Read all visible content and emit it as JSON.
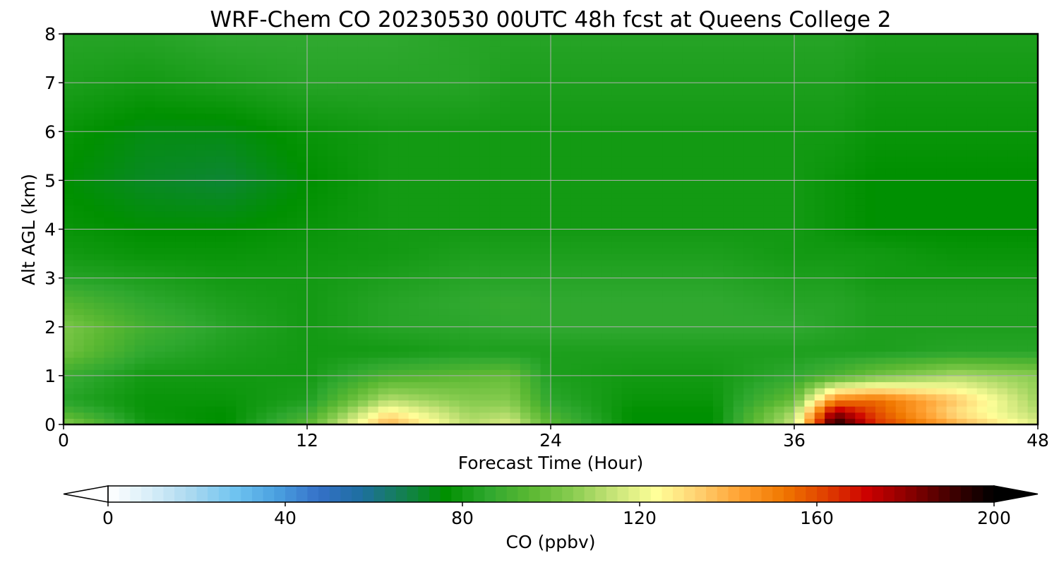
{
  "chart_data": {
    "type": "heatmap",
    "title": "WRF-Chem CO  20230530 00UTC 48h fcst at Queens College 2",
    "xlabel": "Forecast Time (Hour)",
    "ylabel": "Alt AGL (km)",
    "xlim": [
      0,
      48
    ],
    "ylim": [
      0,
      8
    ],
    "xticks": [
      0,
      12,
      24,
      36,
      48
    ],
    "xtick_labels": [
      "0",
      "12",
      "24",
      "36",
      "48"
    ],
    "yticks": [
      0,
      1,
      2,
      3,
      4,
      5,
      6,
      7,
      8
    ],
    "ytick_labels": [
      "0",
      "1",
      "2",
      "3",
      "4",
      "5",
      "6",
      "7",
      "8"
    ],
    "grid": true,
    "x": [
      0,
      4,
      8,
      12,
      16,
      20,
      22,
      24,
      28,
      32,
      36,
      38,
      40,
      44,
      48
    ],
    "y": [
      0,
      0.25,
      0.5,
      1,
      1.5,
      2,
      2.5,
      3,
      3.5,
      4,
      5,
      6,
      7,
      8
    ],
    "z": [
      [
        105,
        80,
        76,
        95,
        140,
        112,
        118,
        95,
        76,
        76,
        115,
        198,
        165,
        140,
        118
      ],
      [
        92,
        78,
        76,
        88,
        128,
        108,
        110,
        90,
        76,
        76,
        110,
        180,
        160,
        130,
        112
      ],
      [
        84,
        78,
        78,
        82,
        112,
        104,
        104,
        85,
        78,
        78,
        98,
        150,
        155,
        135,
        108
      ],
      [
        88,
        80,
        80,
        80,
        92,
        96,
        98,
        82,
        80,
        80,
        86,
        92,
        100,
        110,
        105
      ],
      [
        100,
        86,
        82,
        80,
        80,
        82,
        82,
        82,
        82,
        82,
        82,
        82,
        82,
        84,
        84
      ],
      [
        102,
        90,
        84,
        80,
        84,
        85,
        86,
        86,
        86,
        86,
        86,
        84,
        82,
        82,
        82
      ],
      [
        94,
        86,
        82,
        80,
        84,
        86,
        87,
        86,
        86,
        86,
        84,
        84,
        82,
        82,
        82
      ],
      [
        84,
        82,
        80,
        80,
        82,
        84,
        84,
        84,
        84,
        84,
        82,
        82,
        80,
        80,
        80
      ],
      [
        80,
        78,
        78,
        79,
        80,
        82,
        82,
        82,
        82,
        82,
        80,
        80,
        80,
        78,
        78
      ],
      [
        78,
        76,
        76,
        78,
        80,
        80,
        80,
        80,
        80,
        80,
        80,
        78,
        76,
        76,
        76
      ],
      [
        76,
        72,
        70,
        76,
        80,
        80,
        80,
        80,
        80,
        80,
        80,
        78,
        76,
        76,
        76
      ],
      [
        78,
        74,
        74,
        78,
        80,
        80,
        80,
        80,
        80,
        80,
        80,
        80,
        78,
        78,
        78
      ],
      [
        82,
        80,
        82,
        84,
        84,
        84,
        82,
        82,
        82,
        82,
        82,
        82,
        80,
        80,
        80
      ],
      [
        84,
        84,
        86,
        86,
        86,
        84,
        84,
        84,
        84,
        84,
        84,
        84,
        82,
        82,
        82
      ]
    ],
    "colorbar": {
      "label": "CO  (ppbv)",
      "min": 0,
      "max": 200,
      "ticks": [
        0,
        40,
        80,
        120,
        160,
        200
      ],
      "tick_labels": [
        "0",
        "40",
        "80",
        "120",
        "160",
        "200"
      ],
      "extend": "both",
      "colors": [
        "#ffffff",
        "#d8eef8",
        "#a8d8f0",
        "#70c4f0",
        "#4aa0e0",
        "#3570c8",
        "#1e6fa0",
        "#148050",
        "#009000",
        "#2fa82f",
        "#5ab832",
        "#88cc50",
        "#c8e478",
        "#ffff99",
        "#ffd070",
        "#ffa030",
        "#f07800",
        "#e04000",
        "#cc0000",
        "#880000",
        "#400000",
        "#000000"
      ]
    }
  }
}
